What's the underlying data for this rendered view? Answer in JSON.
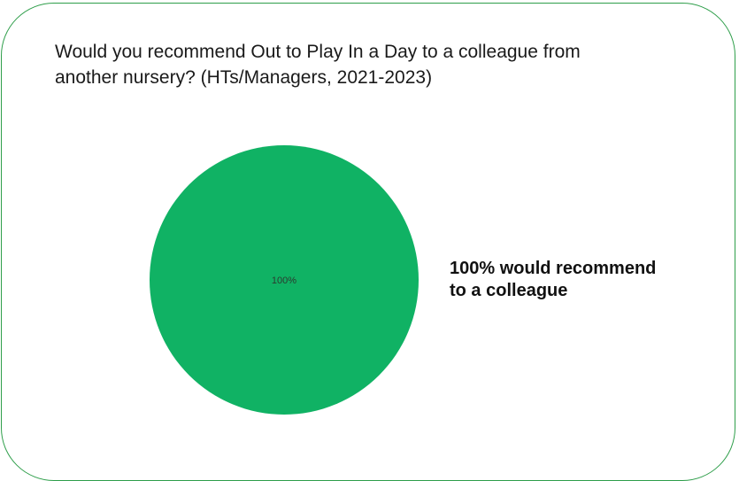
{
  "chart_data": {
    "type": "pie",
    "title_lines": [
      "Would you recommend Out to Play In a Day to a colleague from",
      "another nursery? (HTs/Managers, 2021-2023)"
    ],
    "slices": [
      {
        "value": 100,
        "label": "100%",
        "color": "#10b264"
      }
    ],
    "annotation_lines": [
      "100% would recommend",
      "to a colleague"
    ]
  },
  "colors": {
    "frame_border": "#2e9e4a",
    "slice_fill": "#10b264"
  }
}
